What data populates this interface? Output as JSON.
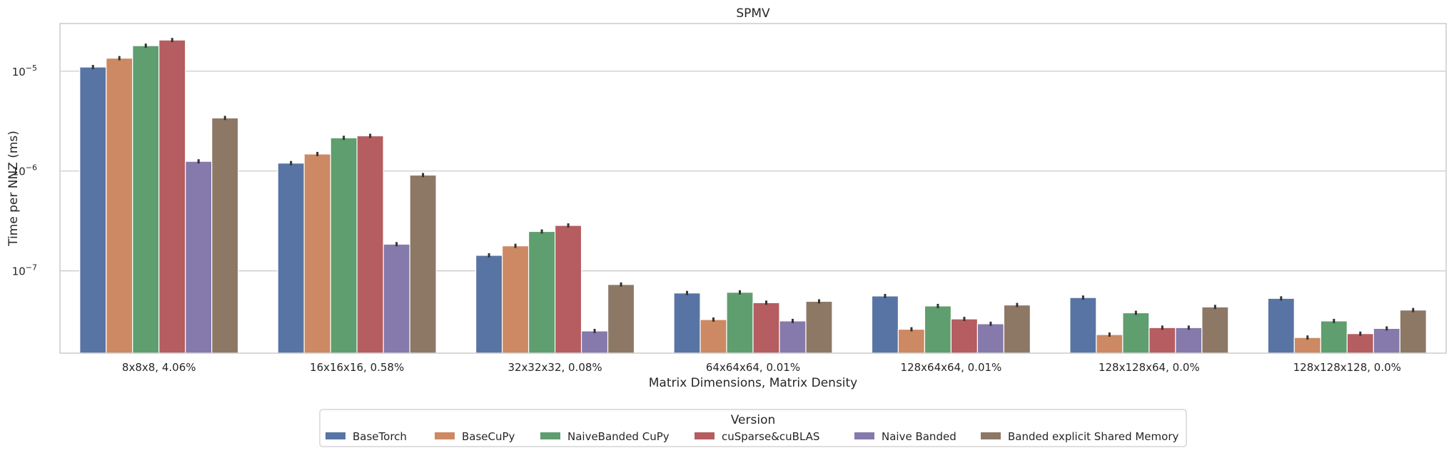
{
  "chart_data": {
    "type": "bar",
    "title": "SPMV",
    "xlabel": "Matrix Dimensions, Matrix Density",
    "ylabel": "Time per NNZ (ms)",
    "yscale": "log",
    "ylim": [
      1.5e-08,
      3e-05
    ],
    "yticks": [
      {
        "value": 1e-07,
        "mantissa": "10",
        "exp": "−7"
      },
      {
        "value": 1e-06,
        "mantissa": "10",
        "exp": "−6"
      },
      {
        "value": 1e-05,
        "mantissa": "10",
        "exp": "−5"
      }
    ],
    "grid": true,
    "legend_title": "Version",
    "legend_position": "bottom-center",
    "categories": [
      "8x8x8, 4.06%",
      "16x16x16, 0.58%",
      "32x32x32, 0.08%",
      "64x64x64, 0.01%",
      "128x64x64, 0.01%",
      "128x128x64, 0.0%",
      "128x128x128, 0.0%"
    ],
    "series": [
      {
        "name": "BaseTorch",
        "color": "#5874a4",
        "values": [
          1.1e-05,
          1.2e-06,
          1.43e-07,
          6e-08,
          5.6e-08,
          5.4e-08,
          5.3e-08
        ]
      },
      {
        "name": "BaseCuPy",
        "color": "#cc8963",
        "values": [
          1.35e-05,
          1.48e-06,
          1.78e-07,
          3.25e-08,
          2.6e-08,
          2.3e-08,
          2.15e-08
        ]
      },
      {
        "name": "NaiveBanded CuPy",
        "color": "#5f9e6e",
        "values": [
          1.8e-05,
          2.15e-06,
          2.48e-07,
          6.1e-08,
          4.45e-08,
          3.8e-08,
          3.15e-08
        ]
      },
      {
        "name": "cuSparse&cuBLAS",
        "color": "#b55d60",
        "values": [
          2.05e-05,
          2.25e-06,
          2.85e-07,
          4.8e-08,
          3.3e-08,
          2.7e-08,
          2.35e-08
        ]
      },
      {
        "name": "Naive Banded",
        "color": "#857aab",
        "values": [
          1.25e-06,
          1.85e-07,
          2.5e-08,
          3.15e-08,
          2.95e-08,
          2.7e-08,
          2.65e-08
        ]
      },
      {
        "name": "Banded explicit Shared Memory",
        "color": "#8d7866",
        "values": [
          3.4e-06,
          9.1e-07,
          7.3e-08,
          4.95e-08,
          4.55e-08,
          4.35e-08,
          4.05e-08
        ]
      }
    ]
  }
}
